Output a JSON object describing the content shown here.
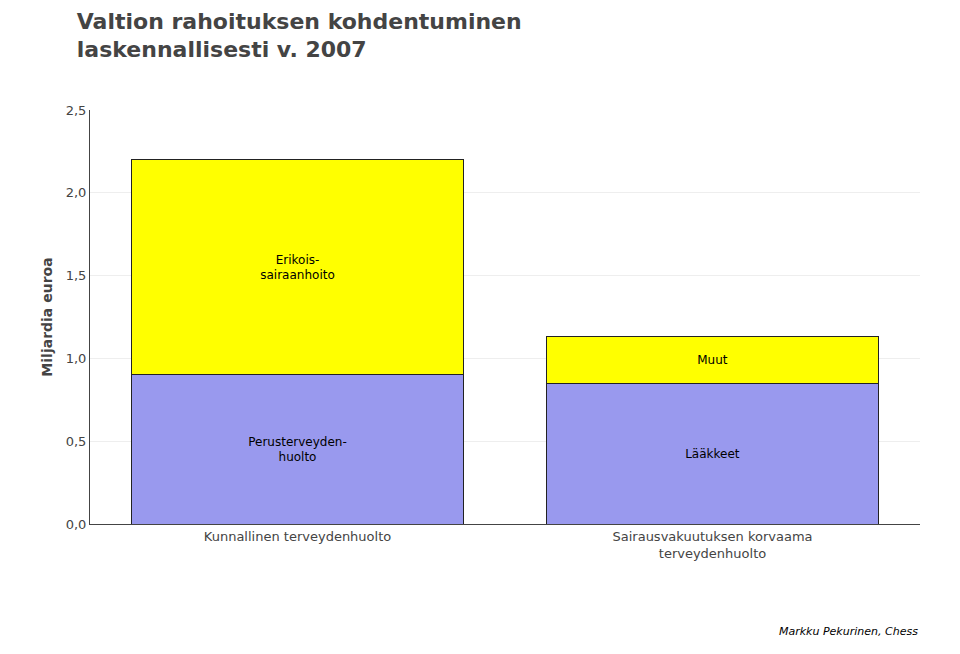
{
  "chart_data": {
    "type": "bar",
    "stacked": true,
    "title": "Valtion rahoituksen kohdentuminen\nlaskennallisesti v. 2007",
    "y_label": "Miljardia euroa",
    "categories": [
      "Kunnallinen terveydenhuolto",
      "Sairausvakuutuksen korvaama\nterveydenhuolto"
    ],
    "series": [
      {
        "color": "#9999ee",
        "values": [
          0.9,
          0.85
        ],
        "labels": [
          "Perusterveyden-\nhuolto",
          "Lääkkeet"
        ]
      },
      {
        "color": "#ffff00",
        "values": [
          1.3,
          0.28
        ],
        "labels": [
          "Erikois-\nsairaanhoito",
          "Muut"
        ]
      }
    ],
    "ylim": [
      0.0,
      2.5
    ],
    "yticks": [
      {
        "value": 0.0,
        "label": "0,0"
      },
      {
        "value": 0.5,
        "label": "0,5"
      },
      {
        "value": 1.0,
        "label": "1,0"
      },
      {
        "value": 1.5,
        "label": "1,5"
      },
      {
        "value": 2.0,
        "label": "2,0"
      },
      {
        "value": 2.5,
        "label": "2,5"
      }
    ],
    "grid": true,
    "annotations": [
      "Markku Pekurinen, Chess"
    ]
  }
}
